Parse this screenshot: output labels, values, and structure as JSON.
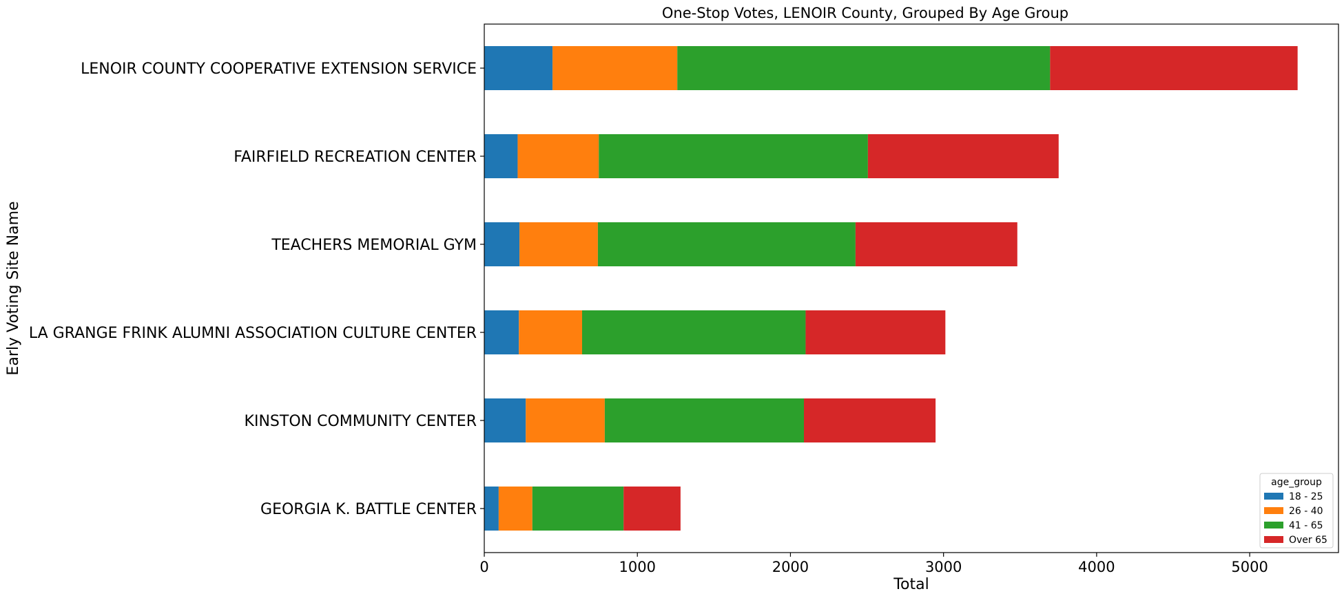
{
  "chart_data": {
    "type": "bar",
    "orientation": "horizontal",
    "stacked": true,
    "title": "One-Stop Votes, LENOIR County, Grouped By Age Group",
    "xlabel": "Total",
    "ylabel": "Early Voting Site Name",
    "xlim": [
      0,
      5580
    ],
    "xticks": [
      0,
      1000,
      2000,
      3000,
      4000,
      5000
    ],
    "grid": false,
    "legend_title": "age_group",
    "legend_position": "bottom-right",
    "categories": [
      "LENOIR COUNTY COOPERATIVE EXTENSION SERVICE",
      "FAIRFIELD RECREATION CENTER",
      "TEACHERS MEMORIAL GYM",
      "LA GRANGE FRINK ALUMNI ASSOCIATION CULTURE CENTER",
      "KINSTON COMMUNITY CENTER",
      "GEORGIA K. BATTLE CENTER"
    ],
    "series": [
      {
        "name": "18 - 25",
        "color": "#1f77b4",
        "values": [
          446,
          218,
          230,
          226,
          271,
          94
        ]
      },
      {
        "name": "26 - 40",
        "color": "#ff7f0e",
        "values": [
          815,
          530,
          512,
          413,
          516,
          220
        ]
      },
      {
        "name": "41 - 65",
        "color": "#2ca02c",
        "values": [
          2435,
          1758,
          1683,
          1460,
          1301,
          596
        ]
      },
      {
        "name": "Over 65",
        "color": "#d62728",
        "values": [
          1617,
          1246,
          1057,
          913,
          860,
          372
        ]
      }
    ]
  }
}
